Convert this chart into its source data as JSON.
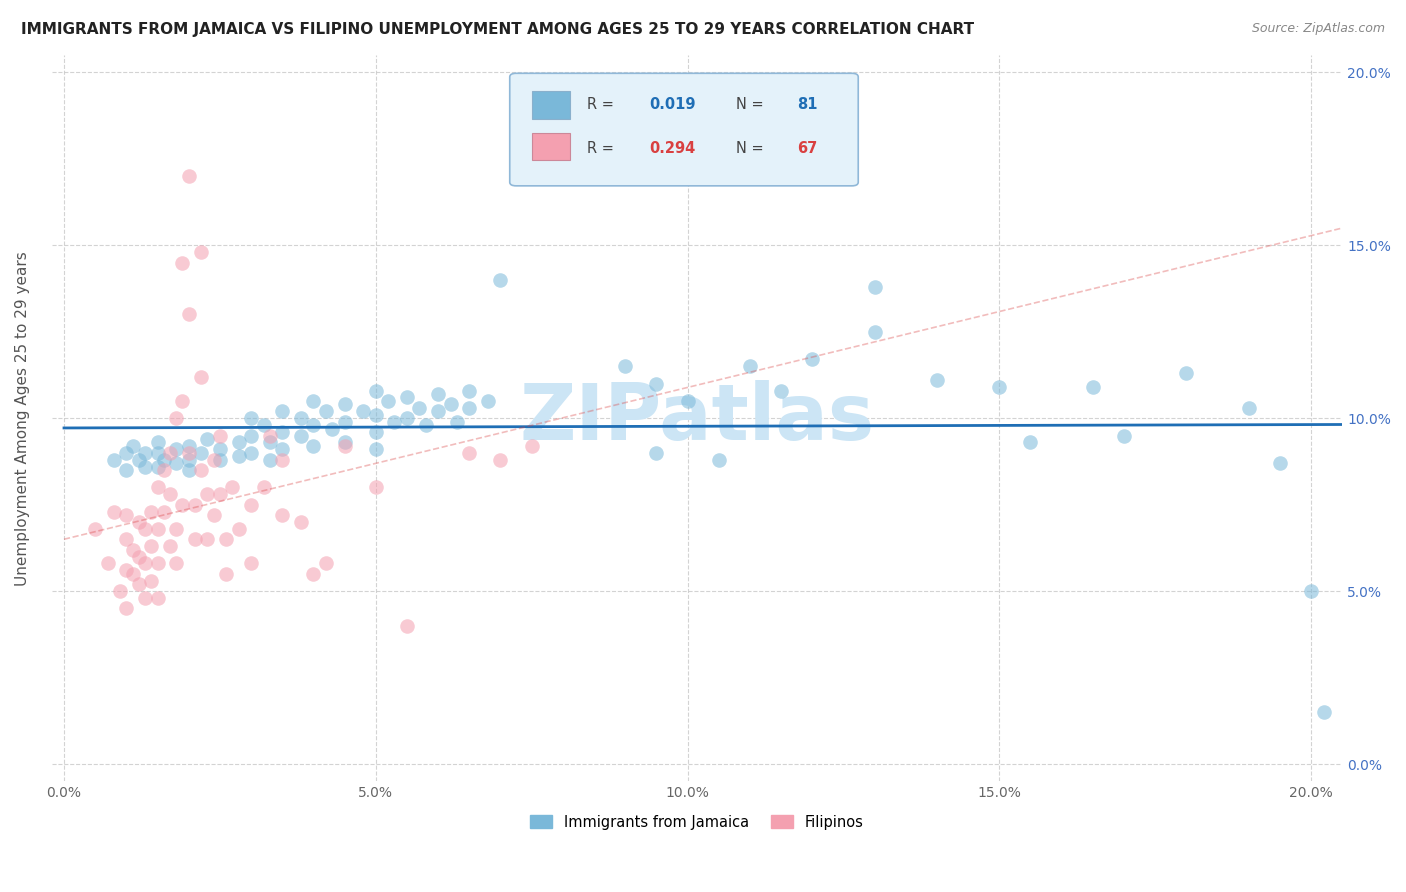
{
  "title": "IMMIGRANTS FROM JAMAICA VS FILIPINO UNEMPLOYMENT AMONG AGES 25 TO 29 YEARS CORRELATION CHART",
  "source": "Source: ZipAtlas.com",
  "ylabel": "Unemployment Among Ages 25 to 29 years",
  "xtick_vals": [
    0.0,
    0.05,
    0.1,
    0.15,
    0.2
  ],
  "ytick_vals": [
    0.0,
    0.05,
    0.1,
    0.15,
    0.2
  ],
  "xlim": [
    -0.002,
    0.205
  ],
  "ylim": [
    -0.005,
    0.205
  ],
  "blue_color": "#7ab8d9",
  "pink_color": "#f4a0b0",
  "blue_line_color": "#1f6eb5",
  "pink_line_color": "#d94040",
  "blue_scatter": [
    [
      0.008,
      0.088
    ],
    [
      0.01,
      0.09
    ],
    [
      0.01,
      0.085
    ],
    [
      0.011,
      0.092
    ],
    [
      0.012,
      0.088
    ],
    [
      0.013,
      0.09
    ],
    [
      0.013,
      0.086
    ],
    [
      0.015,
      0.09
    ],
    [
      0.015,
      0.093
    ],
    [
      0.015,
      0.086
    ],
    [
      0.016,
      0.088
    ],
    [
      0.018,
      0.091
    ],
    [
      0.018,
      0.087
    ],
    [
      0.02,
      0.092
    ],
    [
      0.02,
      0.088
    ],
    [
      0.02,
      0.085
    ],
    [
      0.022,
      0.09
    ],
    [
      0.023,
      0.094
    ],
    [
      0.025,
      0.091
    ],
    [
      0.025,
      0.088
    ],
    [
      0.028,
      0.093
    ],
    [
      0.028,
      0.089
    ],
    [
      0.03,
      0.1
    ],
    [
      0.03,
      0.095
    ],
    [
      0.03,
      0.09
    ],
    [
      0.032,
      0.098
    ],
    [
      0.033,
      0.093
    ],
    [
      0.033,
      0.088
    ],
    [
      0.035,
      0.102
    ],
    [
      0.035,
      0.096
    ],
    [
      0.035,
      0.091
    ],
    [
      0.038,
      0.1
    ],
    [
      0.038,
      0.095
    ],
    [
      0.04,
      0.105
    ],
    [
      0.04,
      0.098
    ],
    [
      0.04,
      0.092
    ],
    [
      0.042,
      0.102
    ],
    [
      0.043,
      0.097
    ],
    [
      0.045,
      0.104
    ],
    [
      0.045,
      0.099
    ],
    [
      0.045,
      0.093
    ],
    [
      0.048,
      0.102
    ],
    [
      0.05,
      0.108
    ],
    [
      0.05,
      0.101
    ],
    [
      0.05,
      0.096
    ],
    [
      0.05,
      0.091
    ],
    [
      0.052,
      0.105
    ],
    [
      0.053,
      0.099
    ],
    [
      0.055,
      0.106
    ],
    [
      0.055,
      0.1
    ],
    [
      0.057,
      0.103
    ],
    [
      0.058,
      0.098
    ],
    [
      0.06,
      0.107
    ],
    [
      0.06,
      0.102
    ],
    [
      0.062,
      0.104
    ],
    [
      0.063,
      0.099
    ],
    [
      0.065,
      0.108
    ],
    [
      0.065,
      0.103
    ],
    [
      0.068,
      0.105
    ],
    [
      0.07,
      0.14
    ],
    [
      0.09,
      0.115
    ],
    [
      0.095,
      0.11
    ],
    [
      0.095,
      0.09
    ],
    [
      0.1,
      0.105
    ],
    [
      0.105,
      0.088
    ],
    [
      0.11,
      0.115
    ],
    [
      0.115,
      0.108
    ],
    [
      0.12,
      0.117
    ],
    [
      0.13,
      0.138
    ],
    [
      0.13,
      0.125
    ],
    [
      0.14,
      0.111
    ],
    [
      0.15,
      0.109
    ],
    [
      0.155,
      0.093
    ],
    [
      0.165,
      0.109
    ],
    [
      0.17,
      0.095
    ],
    [
      0.18,
      0.113
    ],
    [
      0.19,
      0.103
    ],
    [
      0.195,
      0.087
    ],
    [
      0.2,
      0.05
    ],
    [
      0.202,
      0.015
    ]
  ],
  "pink_scatter": [
    [
      0.005,
      0.068
    ],
    [
      0.007,
      0.058
    ],
    [
      0.008,
      0.073
    ],
    [
      0.009,
      0.05
    ],
    [
      0.01,
      0.065
    ],
    [
      0.01,
      0.072
    ],
    [
      0.01,
      0.056
    ],
    [
      0.01,
      0.045
    ],
    [
      0.011,
      0.062
    ],
    [
      0.011,
      0.055
    ],
    [
      0.012,
      0.07
    ],
    [
      0.012,
      0.06
    ],
    [
      0.012,
      0.052
    ],
    [
      0.013,
      0.068
    ],
    [
      0.013,
      0.058
    ],
    [
      0.013,
      0.048
    ],
    [
      0.014,
      0.073
    ],
    [
      0.014,
      0.063
    ],
    [
      0.014,
      0.053
    ],
    [
      0.015,
      0.08
    ],
    [
      0.015,
      0.068
    ],
    [
      0.015,
      0.058
    ],
    [
      0.015,
      0.048
    ],
    [
      0.016,
      0.085
    ],
    [
      0.016,
      0.073
    ],
    [
      0.017,
      0.063
    ],
    [
      0.017,
      0.09
    ],
    [
      0.017,
      0.078
    ],
    [
      0.018,
      0.1
    ],
    [
      0.018,
      0.068
    ],
    [
      0.018,
      0.058
    ],
    [
      0.019,
      0.145
    ],
    [
      0.019,
      0.105
    ],
    [
      0.019,
      0.075
    ],
    [
      0.02,
      0.17
    ],
    [
      0.02,
      0.13
    ],
    [
      0.02,
      0.09
    ],
    [
      0.021,
      0.075
    ],
    [
      0.021,
      0.065
    ],
    [
      0.022,
      0.148
    ],
    [
      0.022,
      0.112
    ],
    [
      0.022,
      0.085
    ],
    [
      0.023,
      0.078
    ],
    [
      0.023,
      0.065
    ],
    [
      0.024,
      0.088
    ],
    [
      0.024,
      0.072
    ],
    [
      0.025,
      0.095
    ],
    [
      0.025,
      0.078
    ],
    [
      0.026,
      0.065
    ],
    [
      0.026,
      0.055
    ],
    [
      0.027,
      0.08
    ],
    [
      0.028,
      0.068
    ],
    [
      0.03,
      0.075
    ],
    [
      0.03,
      0.058
    ],
    [
      0.032,
      0.08
    ],
    [
      0.033,
      0.095
    ],
    [
      0.035,
      0.088
    ],
    [
      0.035,
      0.072
    ],
    [
      0.038,
      0.07
    ],
    [
      0.04,
      0.055
    ],
    [
      0.042,
      0.058
    ],
    [
      0.045,
      0.092
    ],
    [
      0.05,
      0.08
    ],
    [
      0.055,
      0.04
    ],
    [
      0.065,
      0.09
    ],
    [
      0.07,
      0.088
    ],
    [
      0.075,
      0.092
    ]
  ],
  "watermark": "ZIPatlas",
  "watermark_color": "#cce5f5",
  "legend_box_color": "#e4f2fa",
  "legend_border_color": "#90b8d8",
  "grid_color": "#c8c8c8",
  "title_fontsize": 11,
  "axis_label_fontsize": 11,
  "tick_fontsize": 10,
  "right_tick_color": "#4472c4",
  "source_color": "#888888"
}
